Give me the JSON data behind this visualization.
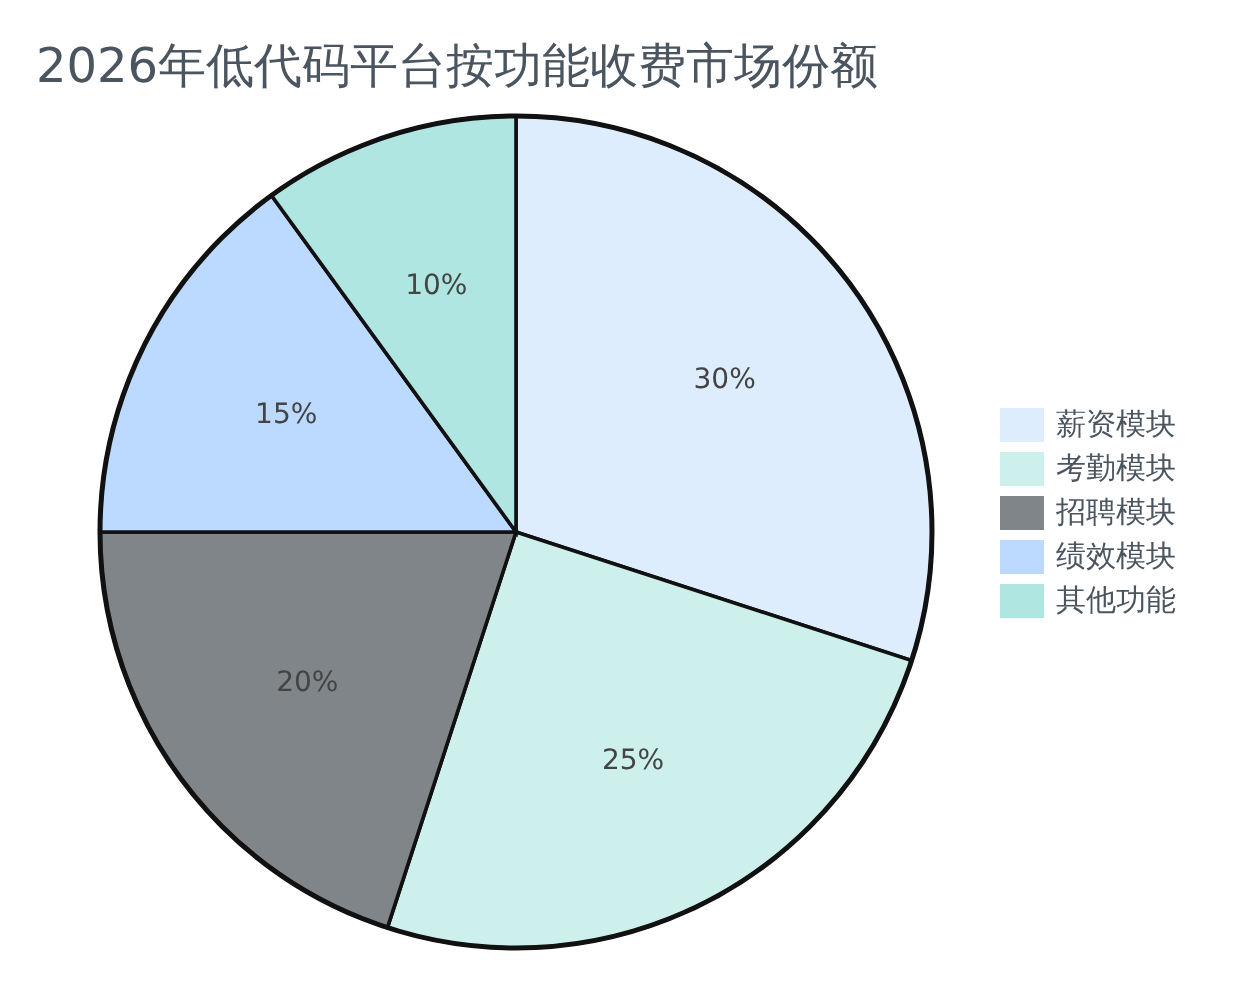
{
  "chart_data": {
    "type": "pie",
    "title": "2026年低代码平台按功能收费市场份额",
    "categories": [
      "薪资模块",
      "考勤模块",
      "招聘模块",
      "绩效模块",
      "其他功能"
    ],
    "values": [
      30,
      25,
      20,
      15,
      10
    ],
    "colors": [
      "#deedfd",
      "#cdf0ec",
      "#80858a",
      "#bcd9ff",
      "#b0e6e2"
    ],
    "value_labels": [
      "30%",
      "25%",
      "20%",
      "15%",
      "10%"
    ],
    "legend": "right"
  }
}
